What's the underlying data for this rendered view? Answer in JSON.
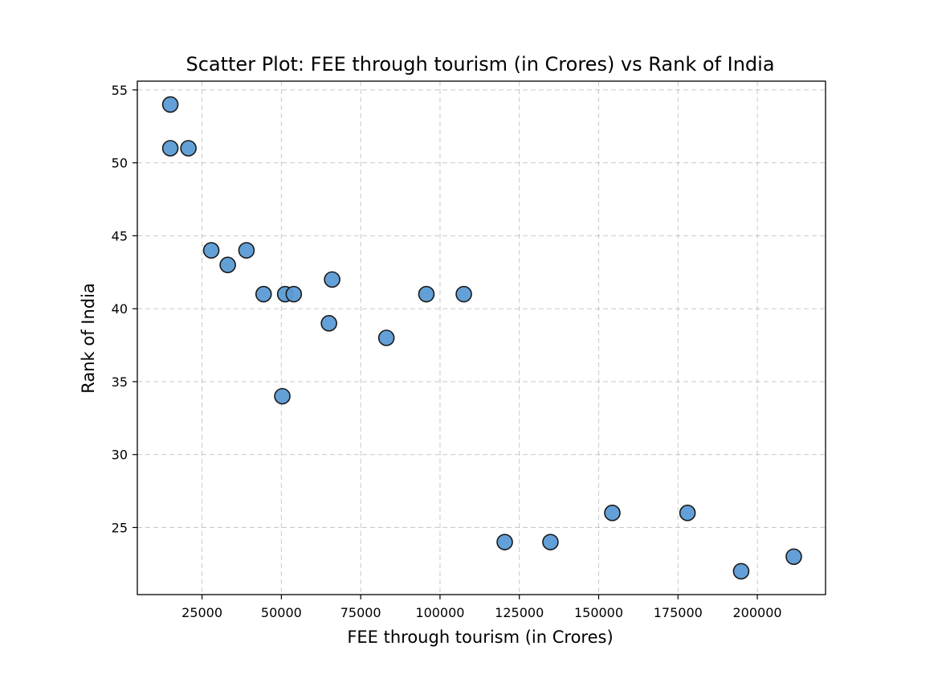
{
  "chart_data": {
    "type": "scatter",
    "title": "Scatter Plot: FEE through tourism (in Crores) vs Rank of India",
    "xlabel": "FEE through tourism (in Crores)",
    "ylabel": "Rank of India",
    "xlim": [
      4600,
      221500
    ],
    "ylim": [
      20.4,
      55.6
    ],
    "xticks": [
      25000,
      50000,
      75000,
      100000,
      125000,
      150000,
      175000,
      200000
    ],
    "xtick_labels": [
      "25000",
      "50000",
      "75000",
      "100000",
      "125000",
      "150000",
      "175000",
      "200000"
    ],
    "yticks": [
      25,
      30,
      35,
      40,
      45,
      50,
      55
    ],
    "ytick_labels": [
      "25",
      "30",
      "35",
      "40",
      "45",
      "50",
      "55"
    ],
    "grid": true,
    "colors": {
      "marker_fill": "#5b9bd5",
      "marker_edge": "#1a1a1a"
    },
    "points": [
      {
        "x": 15000,
        "y": 54
      },
      {
        "x": 15000,
        "y": 51
      },
      {
        "x": 20700,
        "y": 51
      },
      {
        "x": 27900,
        "y": 44
      },
      {
        "x": 33100,
        "y": 43
      },
      {
        "x": 39000,
        "y": 44
      },
      {
        "x": 44400,
        "y": 41
      },
      {
        "x": 51200,
        "y": 41
      },
      {
        "x": 53900,
        "y": 41
      },
      {
        "x": 50300,
        "y": 34
      },
      {
        "x": 65000,
        "y": 39
      },
      {
        "x": 66000,
        "y": 42
      },
      {
        "x": 83100,
        "y": 38
      },
      {
        "x": 95700,
        "y": 41
      },
      {
        "x": 107500,
        "y": 41
      },
      {
        "x": 120400,
        "y": 24
      },
      {
        "x": 134800,
        "y": 24
      },
      {
        "x": 154300,
        "y": 26
      },
      {
        "x": 178000,
        "y": 26
      },
      {
        "x": 194900,
        "y": 22
      },
      {
        "x": 211500,
        "y": 23
      }
    ]
  }
}
